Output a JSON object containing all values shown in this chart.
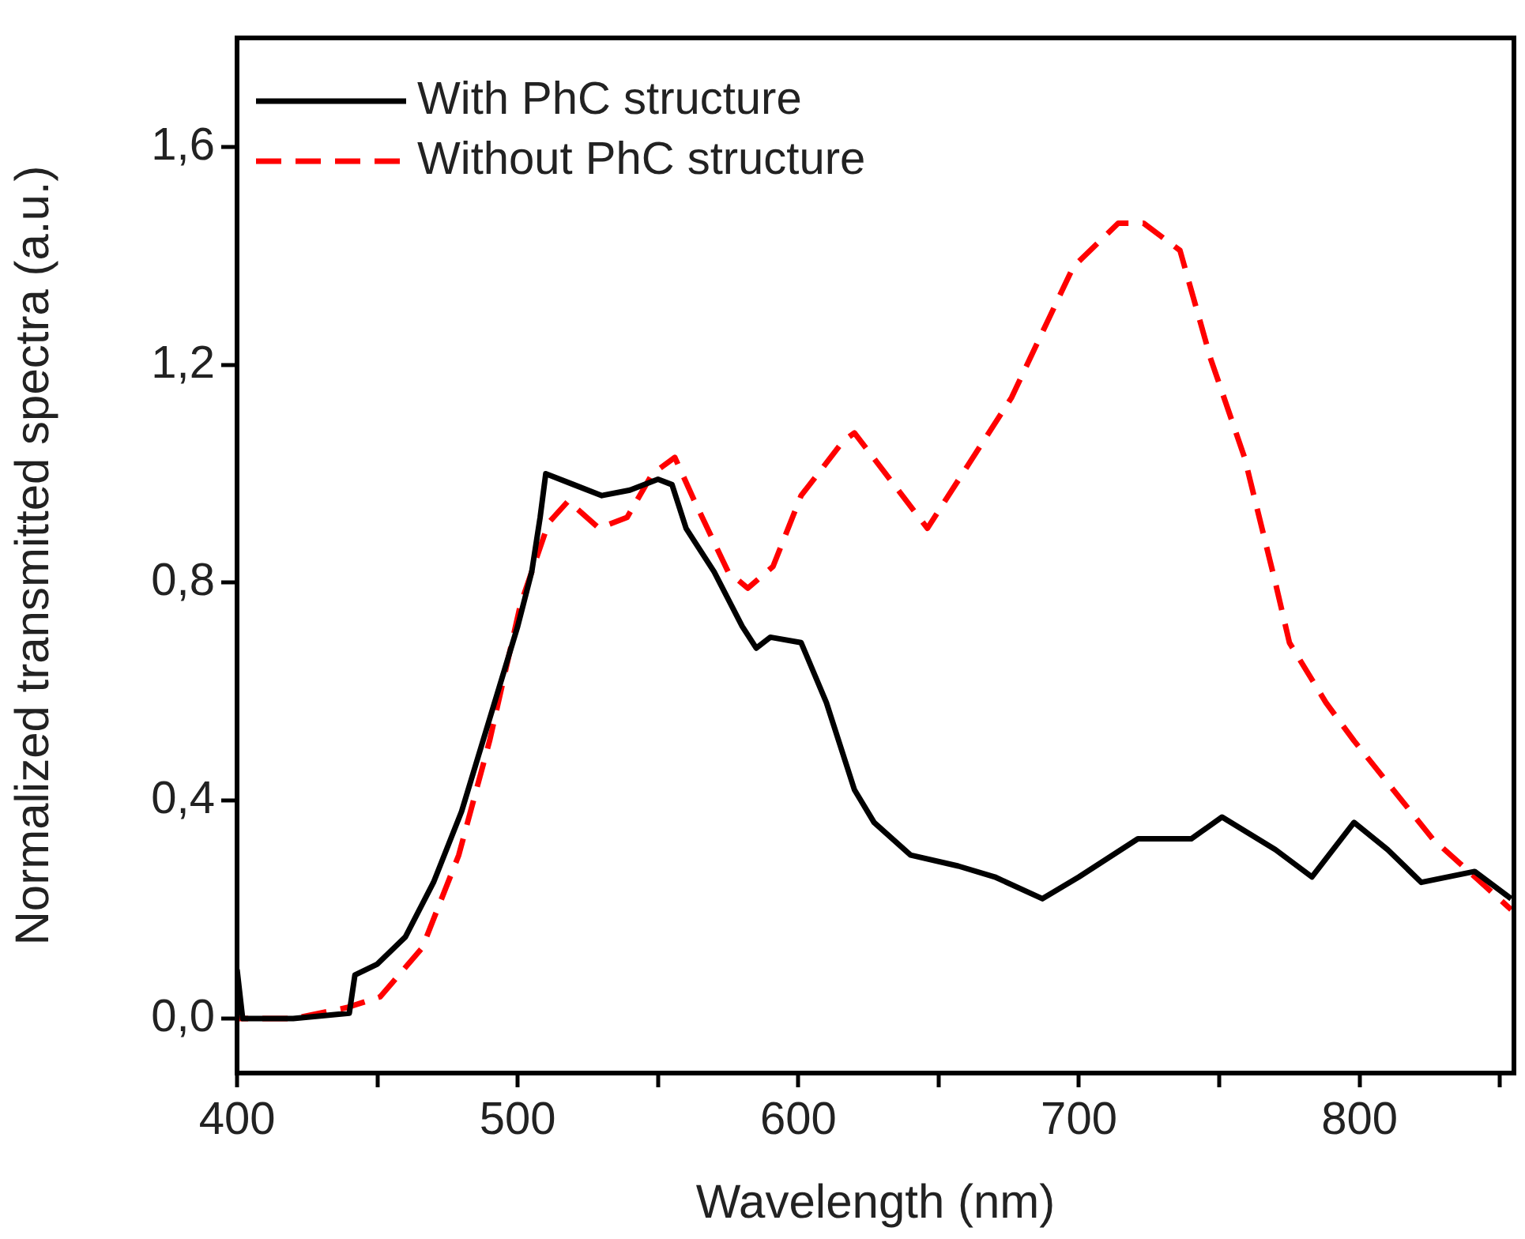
{
  "chart_data": {
    "type": "line",
    "xlabel": "Wavelength (nm)",
    "ylabel": "Normalized transmitted spectra (a.u.)",
    "xlim": [
      400,
      855
    ],
    "xticks": [
      400,
      {
        "value": 450,
        "label": null
      },
      500,
      {
        "value": 550,
        "label": null
      },
      600,
      {
        "value": 650,
        "label": null
      },
      700,
      {
        "value": 750,
        "label": null
      },
      800,
      {
        "value": 850,
        "label": null
      }
    ],
    "ylim": [
      -0.1,
      1.8
    ],
    "yticks": [
      {
        "value": 0,
        "label": "0,0"
      },
      {
        "value": 0.4,
        "label": "0,4"
      },
      {
        "value": 0.8,
        "label": "0,8"
      },
      {
        "value": 1.2,
        "label": "1,2"
      },
      {
        "value": 1.6,
        "label": "1,6"
      }
    ],
    "grid": false,
    "legend": "top left",
    "marker": "none",
    "series": [
      {
        "name": "With PhC structure",
        "color": "#000000",
        "line_style": "solid",
        "x": [
          400,
          402,
          420,
          440,
          442,
          450,
          460,
          470,
          480,
          490,
          500,
          505,
          508,
          510,
          520,
          530,
          540,
          550,
          555,
          560,
          570,
          580,
          585,
          590,
          601,
          610,
          620,
          627,
          640,
          657,
          670,
          687,
          700,
          721,
          740,
          751,
          770,
          783,
          798,
          810,
          822,
          841,
          854
        ],
        "values": [
          0.09,
          0.0,
          0.0,
          0.01,
          0.08,
          0.1,
          0.15,
          0.25,
          0.38,
          0.55,
          0.72,
          0.82,
          0.92,
          1.0,
          0.98,
          0.96,
          0.97,
          0.99,
          0.98,
          0.9,
          0.82,
          0.72,
          0.68,
          0.7,
          0.69,
          0.58,
          0.42,
          0.36,
          0.3,
          0.28,
          0.26,
          0.22,
          0.26,
          0.33,
          0.33,
          0.37,
          0.31,
          0.26,
          0.36,
          0.31,
          0.25,
          0.27,
          0.22
        ]
      },
      {
        "name": "Without PhC structure",
        "color": "#ff0000",
        "line_style": "dashed",
        "x": [
          400,
          420,
          439,
          451,
          466,
          479,
          490,
          501,
          511,
          518,
          529,
          539,
          548,
          556,
          563,
          575,
          582,
          591,
          601,
          616,
          620,
          646,
          676,
          698,
          714,
          723,
          736,
          747,
          759,
          770,
          775,
          788,
          798,
          826,
          854
        ],
        "values": [
          0.0,
          0.0,
          0.02,
          0.04,
          0.13,
          0.3,
          0.51,
          0.76,
          0.91,
          0.95,
          0.9,
          0.92,
          1.0,
          1.03,
          0.95,
          0.82,
          0.79,
          0.83,
          0.96,
          1.06,
          1.075,
          0.9,
          1.14,
          1.38,
          1.46,
          1.46,
          1.41,
          1.21,
          1.03,
          0.8,
          0.69,
          0.58,
          0.51,
          0.33,
          0.2
        ]
      }
    ]
  }
}
